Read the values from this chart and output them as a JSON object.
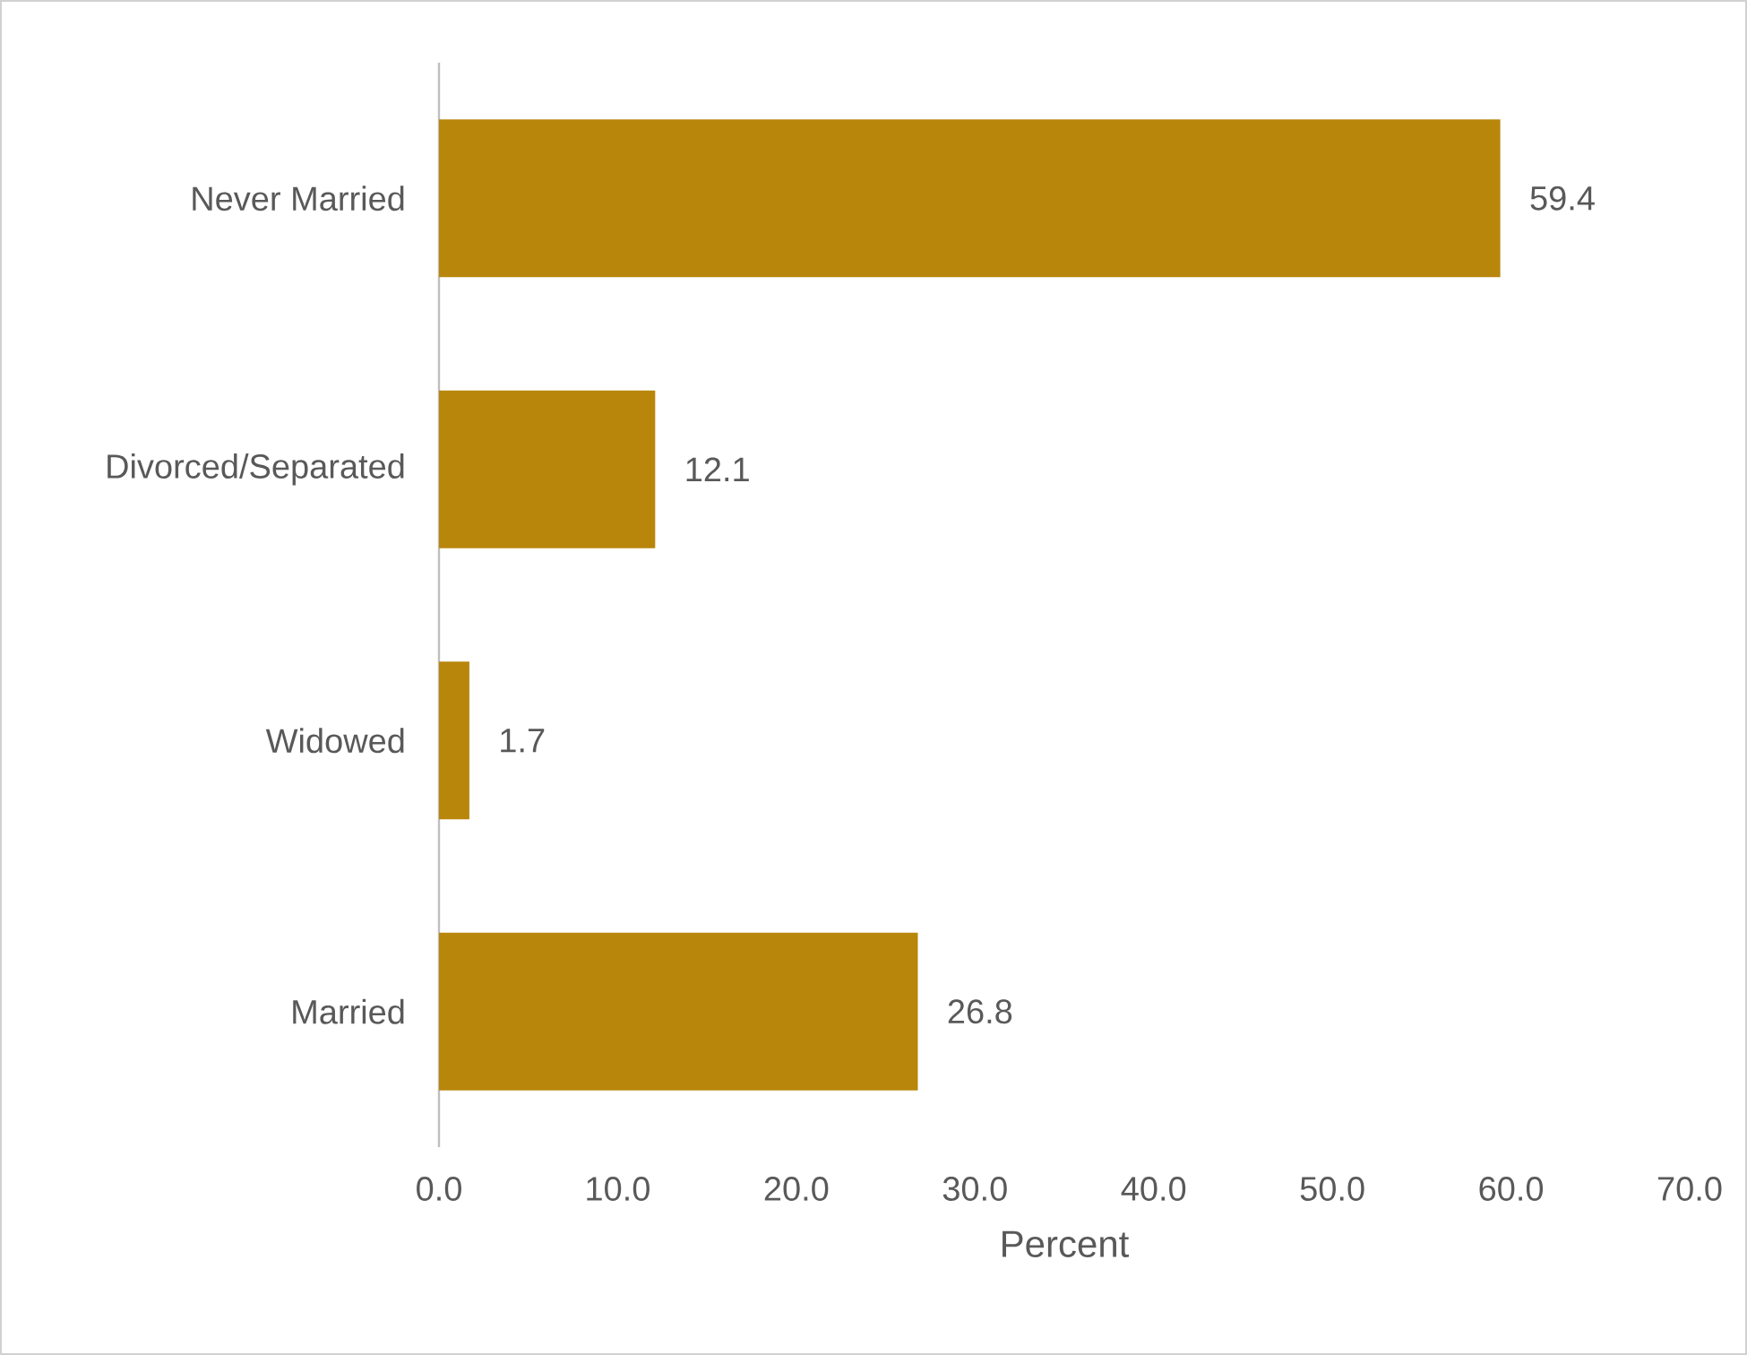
{
  "chart_data": {
    "type": "bar",
    "orientation": "horizontal",
    "xlabel": "Percent",
    "categories": [
      "Never Married",
      "Divorced/Separated",
      "Widowed",
      "Married"
    ],
    "values": [
      59.4,
      12.1,
      1.7,
      26.8
    ],
    "color": "#b8860b",
    "xlim": [
      0,
      70
    ],
    "xticks": [
      {
        "value": 0,
        "label": "0.0"
      },
      {
        "value": 10,
        "label": "10.0"
      },
      {
        "value": 20,
        "label": "20.0"
      },
      {
        "value": 30,
        "label": "30.0"
      },
      {
        "value": 40,
        "label": "40.0"
      },
      {
        "value": 50,
        "label": "50.0"
      },
      {
        "value": 60,
        "label": "60.0"
      },
      {
        "value": 70,
        "label": "70.0"
      }
    ],
    "data_labels": true
  }
}
